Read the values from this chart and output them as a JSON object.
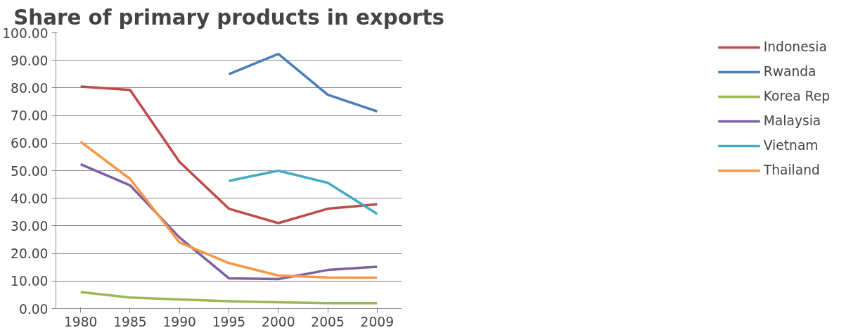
{
  "chart_data": {
    "type": "line",
    "title": "Share of primary products in exports",
    "categories": [
      "1980",
      "1985",
      "1990",
      "1995",
      "2000",
      "2005",
      "2009"
    ],
    "series": [
      {
        "name": "Indonesia",
        "color": "#be4b48",
        "values": [
          80.5,
          79.3,
          53.2,
          36.2,
          31.0,
          36.2,
          37.8
        ]
      },
      {
        "name": "Rwanda",
        "color": "#4a7ebb",
        "values": [
          null,
          null,
          null,
          85.0,
          92.3,
          77.5,
          71.5
        ]
      },
      {
        "name": "Korea Rep",
        "color": "#98b954",
        "values": [
          6.0,
          4.0,
          3.3,
          2.7,
          2.3,
          2.0,
          2.0
        ]
      },
      {
        "name": "Malaysia",
        "color": "#7d60a0",
        "values": [
          52.3,
          44.7,
          25.8,
          11.0,
          10.7,
          14.0,
          15.2
        ]
      },
      {
        "name": "Vietnam",
        "color": "#46aac5",
        "values": [
          null,
          null,
          null,
          46.3,
          50.0,
          45.6,
          34.3
        ]
      },
      {
        "name": "Thailand",
        "color": "#f79646",
        "values": [
          60.5,
          47.0,
          24.0,
          16.5,
          12.0,
          11.3,
          11.2
        ]
      }
    ],
    "ylim": [
      0,
      100
    ],
    "yticks": [
      {
        "value": 0,
        "label": "0.00"
      },
      {
        "value": 10,
        "label": "10.00"
      },
      {
        "value": 20,
        "label": "20.00"
      },
      {
        "value": 30,
        "label": "30.00"
      },
      {
        "value": 40,
        "label": "40.00"
      },
      {
        "value": 50,
        "label": "50.00"
      },
      {
        "value": 60,
        "label": "60.00"
      },
      {
        "value": 70,
        "label": "70.00"
      },
      {
        "value": 80,
        "label": "80.00"
      },
      {
        "value": 90,
        "label": "90.00"
      },
      {
        "value": 100,
        "label": "100.00"
      }
    ],
    "grid": "y",
    "legend": "right",
    "marker": "none",
    "line_style": "solid"
  }
}
